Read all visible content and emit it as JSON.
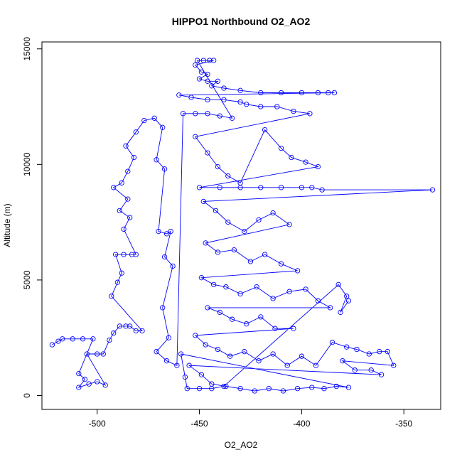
{
  "chart_data": {
    "type": "scatter",
    "title": "HIPPO1 Northbound O2_AO2",
    "xlabel": "O2_AO2",
    "ylabel": "Altitude (m)",
    "xlim": [
      -527,
      -332
    ],
    "ylim": [
      -600,
      15300
    ],
    "xticks": [
      -500,
      -450,
      -400,
      -350
    ],
    "yticks": [
      0,
      5000,
      10000,
      15000
    ],
    "color": "#0000ff",
    "marker": "open-circle",
    "connected": true,
    "series": [
      {
        "points": [
          [
            -522,
            2200
          ],
          [
            -519,
            2350
          ],
          [
            -517,
            2450
          ],
          [
            -512,
            2450
          ],
          [
            -507,
            2450
          ],
          [
            -502,
            2450
          ],
          [
            -509,
            950
          ],
          [
            -506,
            700
          ],
          [
            -509,
            350
          ],
          [
            -504,
            500
          ],
          [
            -500,
            600
          ],
          [
            -496,
            450
          ],
          [
            -505,
            1800
          ],
          [
            -500,
            1800
          ],
          [
            -497,
            1800
          ],
          [
            -494,
            2400
          ],
          [
            -492,
            2700
          ],
          [
            -489,
            3000
          ],
          [
            -486,
            3000
          ],
          [
            -484,
            3000
          ],
          [
            -481,
            2800
          ],
          [
            -478,
            2800
          ],
          [
            -493,
            4300
          ],
          [
            -490,
            4900
          ],
          [
            -488,
            5300
          ],
          [
            -491,
            6100
          ],
          [
            -487,
            6100
          ],
          [
            -483,
            6100
          ],
          [
            -481,
            6100
          ],
          [
            -487,
            7200
          ],
          [
            -484,
            7700
          ],
          [
            -489,
            8000
          ],
          [
            -485,
            8500
          ],
          [
            -492,
            9000
          ],
          [
            -488,
            9200
          ],
          [
            -485,
            9700
          ],
          [
            -482,
            10300
          ],
          [
            -486,
            10800
          ],
          [
            -481,
            11400
          ],
          [
            -477,
            11900
          ],
          [
            -472,
            12000
          ],
          [
            -468,
            11600
          ],
          [
            -471,
            10200
          ],
          [
            -467,
            9800
          ],
          [
            -470,
            7100
          ],
          [
            -466,
            7000
          ],
          [
            -464,
            7100
          ],
          [
            -467,
            6000
          ],
          [
            -463,
            5600
          ],
          [
            -468,
            3800
          ],
          [
            -465,
            2500
          ],
          [
            -471,
            1900
          ],
          [
            -466,
            1500
          ],
          [
            -461,
            1300
          ],
          [
            -458,
            12200
          ],
          [
            -452,
            12200
          ],
          [
            -446,
            12200
          ],
          [
            -440,
            12100
          ],
          [
            -434,
            12000
          ],
          [
            -451,
            14500
          ],
          [
            -448,
            14500
          ],
          [
            -445,
            14500
          ],
          [
            -443,
            14500
          ],
          [
            -452,
            14300
          ],
          [
            -449,
            14000
          ],
          [
            -446,
            13900
          ],
          [
            -450,
            13700
          ],
          [
            -446,
            13600
          ],
          [
            -441,
            13600
          ],
          [
            -444,
            13400
          ],
          [
            -438,
            13300
          ],
          [
            -430,
            13200
          ],
          [
            -420,
            13100
          ],
          [
            -410,
            13100
          ],
          [
            -400,
            13100
          ],
          [
            -392,
            13100
          ],
          [
            -387,
            13100
          ],
          [
            -384,
            13100
          ],
          [
            -460,
            13000
          ],
          [
            -454,
            12900
          ],
          [
            -446,
            12800
          ],
          [
            -438,
            12800
          ],
          [
            -430,
            12700
          ],
          [
            -427,
            12600
          ],
          [
            -420,
            12500
          ],
          [
            -412,
            12500
          ],
          [
            -404,
            12300
          ],
          [
            -396,
            12200
          ],
          [
            -452,
            11200
          ],
          [
            -446,
            10500
          ],
          [
            -441,
            9900
          ],
          [
            -436,
            9500
          ],
          [
            -430,
            9200
          ],
          [
            -418,
            11500
          ],
          [
            -410,
            10700
          ],
          [
            -405,
            10300
          ],
          [
            -398,
            10100
          ],
          [
            -392,
            9900
          ],
          [
            -450,
            9000
          ],
          [
            -440,
            9000
          ],
          [
            -430,
            9000
          ],
          [
            -420,
            9000
          ],
          [
            -410,
            9000
          ],
          [
            -400,
            9000
          ],
          [
            -395,
            9000
          ],
          [
            -390,
            8900
          ],
          [
            -336,
            8900
          ],
          [
            -448,
            8400
          ],
          [
            -442,
            8000
          ],
          [
            -436,
            7500
          ],
          [
            -428,
            7100
          ],
          [
            -421,
            7600
          ],
          [
            -414,
            7900
          ],
          [
            -406,
            7400
          ],
          [
            -447,
            6600
          ],
          [
            -441,
            6200
          ],
          [
            -433,
            6300
          ],
          [
            -425,
            5800
          ],
          [
            -418,
            6100
          ],
          [
            -410,
            5700
          ],
          [
            -402,
            5400
          ],
          [
            -449,
            5100
          ],
          [
            -443,
            4800
          ],
          [
            -437,
            4700
          ],
          [
            -430,
            4400
          ],
          [
            -422,
            4700
          ],
          [
            -414,
            4200
          ],
          [
            -406,
            4500
          ],
          [
            -398,
            4600
          ],
          [
            -392,
            4100
          ],
          [
            -386,
            3800
          ],
          [
            -446,
            3800
          ],
          [
            -440,
            3600
          ],
          [
            -434,
            3300
          ],
          [
            -427,
            3100
          ],
          [
            -420,
            3400
          ],
          [
            -413,
            2900
          ],
          [
            -404,
            2900
          ],
          [
            -452,
            2600
          ],
          [
            -447,
            2200
          ],
          [
            -441,
            2000
          ],
          [
            -435,
            1700
          ],
          [
            -428,
            1900
          ],
          [
            -421,
            1500
          ],
          [
            -414,
            1800
          ],
          [
            -407,
            1300
          ],
          [
            -400,
            1700
          ],
          [
            -393,
            1300
          ],
          [
            -385,
            2300
          ],
          [
            -378,
            2100
          ],
          [
            -373,
            2000
          ],
          [
            -367,
            1800
          ],
          [
            -362,
            1900
          ],
          [
            -358,
            1900
          ],
          [
            -355,
            1300
          ],
          [
            -380,
            1500
          ],
          [
            -374,
            1100
          ],
          [
            -366,
            1100
          ],
          [
            -361,
            900
          ],
          [
            -455,
            1300
          ],
          [
            -449,
            900
          ],
          [
            -444,
            500
          ],
          [
            -437,
            400
          ],
          [
            -430,
            300
          ],
          [
            -423,
            200
          ],
          [
            -416,
            300
          ],
          [
            -409,
            200
          ],
          [
            -402,
            300
          ],
          [
            -395,
            350
          ],
          [
            -389,
            300
          ],
          [
            -383,
            400
          ],
          [
            -377,
            350
          ],
          [
            -459,
            1800
          ],
          [
            -457,
            800
          ],
          [
            -456,
            300
          ],
          [
            -450,
            300
          ],
          [
            -444,
            300
          ],
          [
            -438,
            400
          ],
          [
            -382,
            4800
          ],
          [
            -378,
            4300
          ],
          [
            -381,
            3600
          ],
          [
            -377,
            4100
          ]
        ]
      }
    ]
  }
}
